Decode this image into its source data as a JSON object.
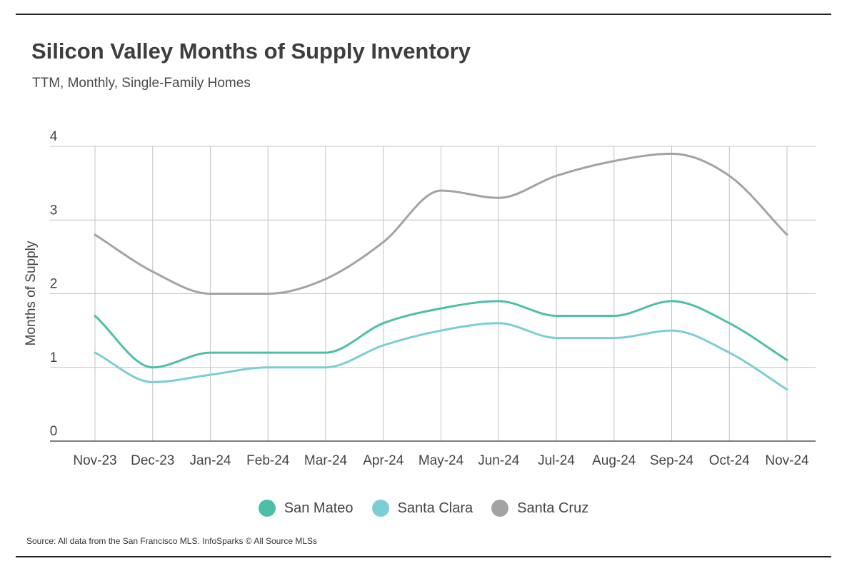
{
  "header": {
    "title": "Silicon Valley Months of Supply Inventory",
    "subtitle": "TTM, Monthly, Single-Family Homes"
  },
  "footer": {
    "source": "Source:  All data from the San Francisco MLS. InfoSparks © All Source MLSs"
  },
  "colors": {
    "san_mateo": "#4dbfa8",
    "santa_clara": "#7bcfd3",
    "santa_cruz": "#a3a3a3",
    "grid": "#c4c4c4",
    "axis": "#555555"
  },
  "chart_data": {
    "type": "line",
    "title": "Silicon Valley Months of Supply Inventory",
    "subtitle": "TTM, Monthly, Single-Family Homes",
    "xlabel": "",
    "ylabel": "Months of Supply",
    "ylim": [
      0,
      4
    ],
    "yticks": [
      "0",
      "1",
      "2",
      "3",
      "4"
    ],
    "grid": true,
    "legend_position": "bottom",
    "categories": [
      "Nov-23",
      "Dec-23",
      "Jan-24",
      "Feb-24",
      "Mar-24",
      "Apr-24",
      "May-24",
      "Jun-24",
      "Jul-24",
      "Aug-24",
      "Sep-24",
      "Oct-24",
      "Nov-24"
    ],
    "series": [
      {
        "name": "San Mateo",
        "color": "#4dbfa8",
        "values": [
          1.7,
          1.0,
          1.2,
          1.2,
          1.2,
          1.6,
          1.8,
          1.9,
          1.7,
          1.7,
          1.9,
          1.6,
          1.1
        ]
      },
      {
        "name": "Santa Clara",
        "color": "#7bcfd3",
        "values": [
          1.2,
          0.8,
          0.9,
          1.0,
          1.0,
          1.3,
          1.5,
          1.6,
          1.4,
          1.4,
          1.5,
          1.2,
          0.7
        ]
      },
      {
        "name": "Santa Cruz",
        "color": "#a3a3a3",
        "values": [
          2.8,
          2.3,
          2.0,
          2.0,
          2.2,
          2.7,
          3.4,
          3.3,
          3.6,
          3.8,
          3.9,
          3.6,
          2.8
        ]
      }
    ]
  }
}
